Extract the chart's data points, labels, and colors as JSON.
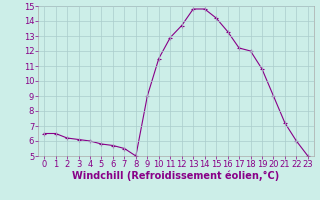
{
  "x": [
    0,
    1,
    2,
    3,
    4,
    5,
    6,
    7,
    8,
    9,
    10,
    11,
    12,
    13,
    14,
    15,
    16,
    17,
    18,
    19,
    20,
    21,
    22,
    23
  ],
  "y": [
    6.5,
    6.5,
    6.2,
    6.1,
    6.0,
    5.8,
    5.7,
    5.5,
    5.0,
    9.0,
    11.5,
    12.9,
    13.7,
    14.8,
    14.8,
    14.2,
    13.3,
    12.2,
    12.0,
    10.8,
    9.0,
    7.2,
    6.0,
    5.0
  ],
  "xlabel": "Windchill (Refroidissement éolien,°C)",
  "ylim": [
    5,
    15
  ],
  "xlim": [
    -0.5,
    23.5
  ],
  "yticks": [
    5,
    6,
    7,
    8,
    9,
    10,
    11,
    12,
    13,
    14,
    15
  ],
  "xticks": [
    0,
    1,
    2,
    3,
    4,
    5,
    6,
    7,
    8,
    9,
    10,
    11,
    12,
    13,
    14,
    15,
    16,
    17,
    18,
    19,
    20,
    21,
    22,
    23
  ],
  "line_color": "#880088",
  "marker": "+",
  "background_color": "#cceee8",
  "grid_color": "#aacccc",
  "tick_label_fontsize": 6,
  "xlabel_fontsize": 7
}
